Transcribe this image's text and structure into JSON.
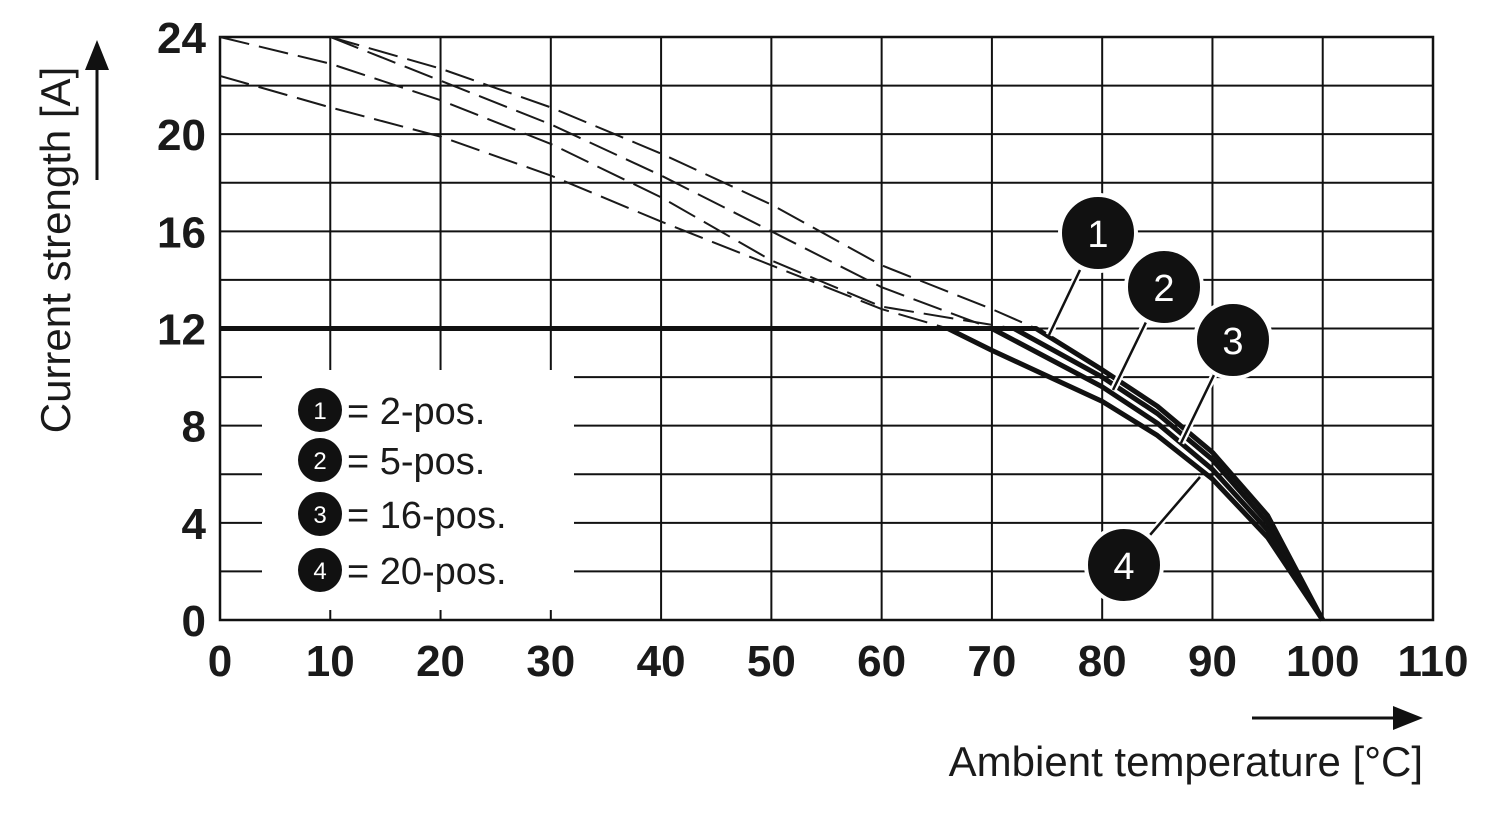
{
  "chart_data": {
    "type": "line",
    "title": "",
    "xlabel": "Ambient temperature [°C]",
    "ylabel": "Current strength [A]",
    "xlim": [
      0,
      110
    ],
    "ylim": [
      0,
      24
    ],
    "x_ticks": [
      0,
      10,
      20,
      30,
      40,
      50,
      60,
      70,
      80,
      90,
      100,
      110
    ],
    "x_tick_labels": [
      "0",
      "10",
      "20",
      "30",
      "40",
      "50",
      "60",
      "70",
      "80",
      "90",
      "100",
      "110"
    ],
    "y_ticks": [
      0,
      4,
      8,
      12,
      16,
      20,
      24
    ],
    "y_tick_labels": [
      "0",
      "4",
      "8",
      "12",
      "16",
      "20",
      "24"
    ],
    "grid": true,
    "rated_current_limit": 12,
    "legend_position": "left",
    "legend": [
      {
        "marker": "1",
        "text": "= 2-pos."
      },
      {
        "marker": "2",
        "text": "= 5-pos."
      },
      {
        "marker": "3",
        "text": "= 16-pos."
      },
      {
        "marker": "4",
        "text": "= 20-pos."
      }
    ],
    "series": [
      {
        "marker": "1",
        "x": [
          10,
          20,
          30,
          40,
          50,
          60,
          70,
          74,
          80,
          85,
          90,
          95,
          100
        ],
        "y": [
          24,
          22.7,
          21.1,
          19.2,
          17.1,
          14.6,
          12.8,
          12,
          10.3,
          8.8,
          6.9,
          4.3,
          0
        ]
      },
      {
        "marker": "2",
        "x": [
          0,
          10,
          20,
          30,
          40,
          50,
          60,
          72,
          80,
          85,
          90,
          95,
          100
        ],
        "y": [
          24,
          22.9,
          21.4,
          19.6,
          17.4,
          14.8,
          12.9,
          12,
          10.0,
          8.5,
          6.6,
          4.0,
          0
        ]
      },
      {
        "marker": "3",
        "x": [
          10,
          20,
          30,
          40,
          50,
          60,
          70,
          80,
          85,
          90,
          95,
          100
        ],
        "y": [
          24,
          22.2,
          20.4,
          18.3,
          16.0,
          13.7,
          12,
          9.6,
          8.1,
          6.2,
          3.7,
          0
        ]
      },
      {
        "marker": "4",
        "x": [
          0,
          10,
          20,
          30,
          40,
          50,
          60,
          66,
          70,
          80,
          85,
          90,
          95,
          100
        ],
        "y": [
          22.4,
          21.1,
          19.9,
          18.3,
          16.4,
          14.6,
          12.8,
          12,
          11.1,
          9.0,
          7.6,
          5.8,
          3.4,
          0
        ]
      }
    ]
  }
}
